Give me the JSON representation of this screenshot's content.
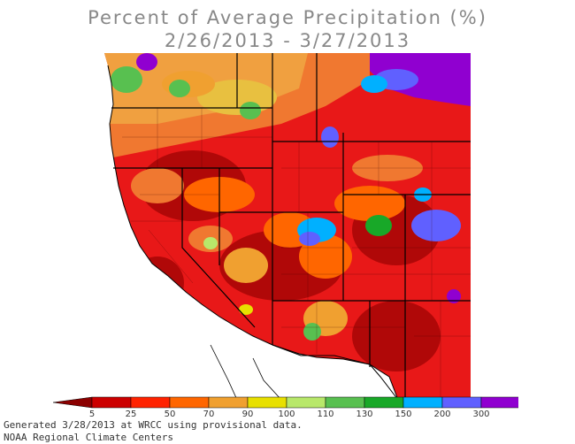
{
  "title": {
    "line1": "Percent of Average Precipitation (%)",
    "line2": "2/26/2013 - 3/27/2013"
  },
  "legend": {
    "ticks": [
      "5",
      "25",
      "50",
      "70",
      "90",
      "100",
      "110",
      "130",
      "150",
      "200",
      "300"
    ],
    "colors": [
      "#8b0000",
      "#cc0000",
      "#ff2200",
      "#ff6600",
      "#f0a030",
      "#e8e000",
      "#b8e86a",
      "#58c050",
      "#18a828",
      "#00b0ff",
      "#6060ff",
      "#9000d0",
      "#ff00ff"
    ]
  },
  "footer": {
    "line1": "Generated 3/28/2013 at WRCC using provisional data.",
    "line2": "NOAA Regional Climate Centers"
  }
}
